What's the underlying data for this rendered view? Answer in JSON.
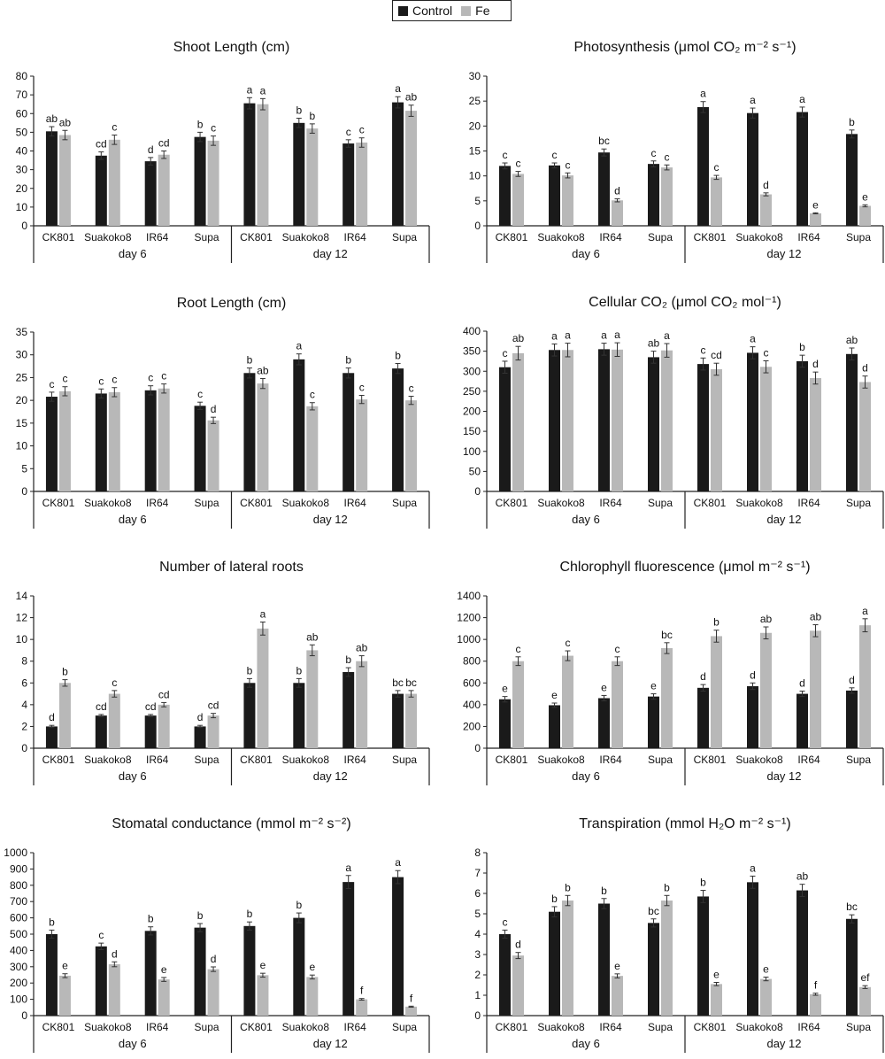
{
  "legend": {
    "items": [
      {
        "label": "Control",
        "color": "#1a1a1a"
      },
      {
        "label": "Fe",
        "color": "#b8b8b8"
      }
    ]
  },
  "chart_data": [
    {
      "type": "bar",
      "title": "Shoot Length (cm)",
      "ylim": [
        0,
        80
      ],
      "yticks": [
        0,
        10,
        20,
        30,
        40,
        50,
        60,
        70,
        80
      ],
      "groups": [
        "day 6",
        "day 12"
      ],
      "categories": [
        "CK801",
        "Suakoko8",
        "IR64",
        "Supa",
        "CK801",
        "Suakoko8",
        "IR64",
        "Supa"
      ],
      "series": [
        {
          "name": "Control",
          "values": [
            50.5,
            37.5,
            34.5,
            47.5,
            65.5,
            55,
            44,
            66
          ],
          "errors": [
            2.5,
            2,
            2,
            2.5,
            3,
            2.5,
            2,
            3
          ],
          "labels": [
            "ab",
            "cd",
            "d",
            "b",
            "a",
            "b",
            "c",
            "a"
          ]
        },
        {
          "name": "Fe",
          "values": [
            48.5,
            46,
            38,
            45.5,
            65,
            52,
            44.5,
            61.5
          ],
          "errors": [
            2.5,
            2.5,
            2,
            2.5,
            3,
            2.5,
            2.5,
            3
          ],
          "labels": [
            "ab",
            "c",
            "cd",
            "c",
            "a",
            "b",
            "c",
            "ab"
          ]
        }
      ]
    },
    {
      "type": "bar",
      "title": "Photosynthesis (μmol CO₂ m⁻² s⁻¹)",
      "ylim": [
        0,
        30
      ],
      "yticks": [
        0,
        5,
        10,
        15,
        20,
        25,
        30
      ],
      "groups": [
        "day 6",
        "day 12"
      ],
      "categories": [
        "CK801",
        "Suakoko8",
        "IR64",
        "Supa",
        "CK801",
        "Suakoko8",
        "IR64",
        "Supa"
      ],
      "series": [
        {
          "name": "Control",
          "values": [
            12,
            12.1,
            14.7,
            12.4,
            23.8,
            22.6,
            22.8,
            18.4
          ],
          "errors": [
            0.6,
            0.5,
            0.7,
            0.6,
            1.1,
            1,
            1,
            0.8
          ],
          "labels": [
            "c",
            "c",
            "bc",
            "c",
            "a",
            "a",
            "a",
            "b"
          ]
        },
        {
          "name": "Fe",
          "values": [
            10.4,
            10.1,
            5.1,
            11.7,
            9.7,
            6.3,
            2.5,
            4
          ],
          "errors": [
            0.5,
            0.5,
            0.3,
            0.5,
            0.4,
            0.3,
            0.1,
            0.2
          ],
          "labels": [
            "c",
            "c",
            "d",
            "c",
            "c",
            "d",
            "e",
            "e"
          ]
        }
      ]
    },
    {
      "type": "bar",
      "title": "Root Length (cm)",
      "ylim": [
        0,
        35
      ],
      "yticks": [
        0,
        5,
        10,
        15,
        20,
        25,
        30,
        35
      ],
      "groups": [
        "day 6",
        "day 12"
      ],
      "categories": [
        "CK801",
        "Suakoko8",
        "IR64",
        "Supa",
        "CK801",
        "Suakoko8",
        "IR64",
        "Supa"
      ],
      "series": [
        {
          "name": "Control",
          "values": [
            20.8,
            21.5,
            22.2,
            18.8,
            26,
            29,
            26,
            27
          ],
          "errors": [
            1,
            1,
            1,
            0.8,
            1.1,
            1.2,
            1.1,
            1.1
          ],
          "labels": [
            "c",
            "c",
            "c",
            "c",
            "b",
            "a",
            "b",
            "b"
          ]
        },
        {
          "name": "Fe",
          "values": [
            22,
            21.8,
            22.6,
            15.6,
            23.7,
            18.7,
            20.2,
            20
          ],
          "errors": [
            1,
            1,
            1,
            0.7,
            1.1,
            0.8,
            0.9,
            0.9
          ],
          "labels": [
            "c",
            "c",
            "c",
            "d",
            "ab",
            "c",
            "c",
            "c"
          ]
        }
      ]
    },
    {
      "type": "bar",
      "title": "Cellular CO₂ (μmol CO₂ mol⁻¹)",
      "ylim": [
        0,
        400
      ],
      "yticks": [
        0,
        50,
        100,
        150,
        200,
        250,
        300,
        350,
        400
      ],
      "groups": [
        "day 6",
        "day 12"
      ],
      "categories": [
        "CK801",
        "Suakoko8",
        "IR64",
        "Supa",
        "CK801",
        "Suakoko8",
        "IR64",
        "Supa"
      ],
      "series": [
        {
          "name": "Control",
          "values": [
            310,
            353,
            355,
            335,
            318,
            346,
            325,
            343
          ],
          "errors": [
            15,
            15,
            15,
            15,
            15,
            15,
            15,
            15
          ],
          "labels": [
            "c",
            "a",
            "a",
            "ab",
            "c",
            "a",
            "b",
            "ab"
          ]
        },
        {
          "name": "Fe",
          "values": [
            345,
            353,
            354,
            352,
            305,
            311,
            283,
            273
          ],
          "errors": [
            17,
            17,
            17,
            17,
            15,
            15,
            15,
            15
          ],
          "labels": [
            "ab",
            "a",
            "a",
            "a",
            "cd",
            "c",
            "d",
            "d"
          ]
        }
      ]
    },
    {
      "type": "bar",
      "title": "Number of lateral roots",
      "ylim": [
        0,
        14
      ],
      "yticks": [
        0,
        2,
        4,
        6,
        8,
        10,
        12,
        14
      ],
      "groups": [
        "day 6",
        "day 12"
      ],
      "categories": [
        "CK801",
        "Suakoko8",
        "IR64",
        "Supa",
        "CK801",
        "Suakoko8",
        "IR64",
        "Supa"
      ],
      "series": [
        {
          "name": "Control",
          "values": [
            2,
            3,
            3,
            2,
            6,
            6,
            7,
            5
          ],
          "errors": [
            0.1,
            0.1,
            0.1,
            0.1,
            0.4,
            0.4,
            0.4,
            0.3
          ],
          "labels": [
            "d",
            "cd",
            "cd",
            "d",
            "b",
            "b",
            "b",
            "bc"
          ]
        },
        {
          "name": "Fe",
          "values": [
            6,
            5,
            4,
            3,
            11,
            9,
            8,
            5
          ],
          "errors": [
            0.3,
            0.3,
            0.2,
            0.2,
            0.6,
            0.5,
            0.5,
            0.3
          ],
          "labels": [
            "b",
            "c",
            "cd",
            "cd",
            "a",
            "ab",
            "ab",
            "bc"
          ]
        }
      ]
    },
    {
      "type": "bar",
      "title": "Chlorophyll fluorescence (μmol m⁻² s⁻¹)",
      "ylim": [
        0,
        1400
      ],
      "yticks": [
        0,
        200,
        400,
        600,
        800,
        1000,
        1200,
        1400
      ],
      "groups": [
        "day 6",
        "day 12"
      ],
      "categories": [
        "CK801",
        "Suakoko8",
        "IR64",
        "Supa",
        "CK801",
        "Suakoko8",
        "IR64",
        "Supa"
      ],
      "series": [
        {
          "name": "Control",
          "values": [
            450,
            395,
            460,
            475,
            555,
            570,
            500,
            530
          ],
          "errors": [
            25,
            20,
            25,
            25,
            30,
            30,
            25,
            25
          ],
          "labels": [
            "e",
            "e",
            "e",
            "e",
            "d",
            "d",
            "d",
            "d"
          ]
        },
        {
          "name": "Fe",
          "values": [
            800,
            850,
            800,
            920,
            1030,
            1060,
            1080,
            1130
          ],
          "errors": [
            40,
            45,
            40,
            50,
            55,
            55,
            55,
            60
          ],
          "labels": [
            "c",
            "c",
            "c",
            "bc",
            "b",
            "ab",
            "ab",
            "a"
          ]
        }
      ]
    },
    {
      "type": "bar",
      "title": "Stomatal conductance (mmol m⁻² s⁻²)",
      "ylim": [
        0,
        1000
      ],
      "yticks": [
        0,
        100,
        200,
        300,
        400,
        500,
        600,
        700,
        800,
        900,
        1000
      ],
      "groups": [
        "day 6",
        "day 12"
      ],
      "categories": [
        "CK801",
        "Suakoko8",
        "IR64",
        "Supa",
        "CK801",
        "Suakoko8",
        "IR64",
        "Supa"
      ],
      "series": [
        {
          "name": "Control",
          "values": [
            500,
            425,
            520,
            540,
            550,
            600,
            820,
            850
          ],
          "errors": [
            25,
            20,
            25,
            25,
            25,
            30,
            40,
            40
          ],
          "labels": [
            "b",
            "c",
            "b",
            "b",
            "b",
            "b",
            "a",
            "a"
          ]
        },
        {
          "name": "Fe",
          "values": [
            245,
            315,
            222,
            285,
            248,
            237,
            100,
            55
          ],
          "errors": [
            12,
            15,
            12,
            14,
            12,
            12,
            5,
            3
          ],
          "labels": [
            "e",
            "d",
            "e",
            "d",
            "e",
            "e",
            "f",
            "f"
          ]
        }
      ]
    },
    {
      "type": "bar",
      "title": "Transpiration (mmol H₂O m⁻² s⁻¹)",
      "ylim": [
        0,
        8
      ],
      "yticks": [
        0,
        1,
        2,
        3,
        4,
        5,
        6,
        7,
        8
      ],
      "groups": [
        "day 6",
        "day 12"
      ],
      "categories": [
        "CK801",
        "Suakoko8",
        "IR64",
        "Supa",
        "CK801",
        "Suakoko8",
        "IR64",
        "Supa"
      ],
      "series": [
        {
          "name": "Control",
          "values": [
            4,
            5.1,
            5.5,
            4.55,
            5.85,
            6.55,
            6.15,
            4.75
          ],
          "errors": [
            0.2,
            0.25,
            0.25,
            0.2,
            0.3,
            0.3,
            0.3,
            0.2
          ],
          "labels": [
            "c",
            "b",
            "b",
            "bc",
            "b",
            "a",
            "ab",
            "bc"
          ]
        },
        {
          "name": "Fe",
          "values": [
            2.95,
            5.65,
            1.95,
            5.65,
            1.55,
            1.8,
            1.05,
            1.4
          ],
          "errors": [
            0.15,
            0.25,
            0.1,
            0.25,
            0.08,
            0.09,
            0.05,
            0.07
          ],
          "labels": [
            "d",
            "b",
            "e",
            "b",
            "e",
            "e",
            "f",
            "ef"
          ]
        }
      ]
    }
  ]
}
